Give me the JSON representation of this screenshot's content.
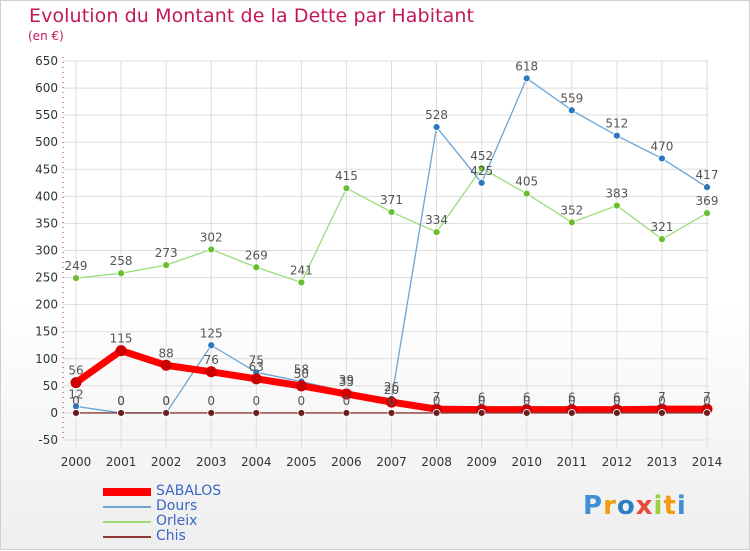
{
  "title": "Evolution du Montant de la Dette par Habitant",
  "unit": "(en €)",
  "logo": {
    "letters": [
      "P",
      "r",
      "o",
      "x",
      "i",
      "t",
      "i"
    ],
    "colors": [
      "#3f8fd6",
      "#f39c12",
      "#2c7fc2",
      "#e74c3c",
      "#9bcf3b",
      "#f39c12",
      "#3f8fd6"
    ]
  },
  "colors": {
    "axis_text": "#333333",
    "grid": "#dddddd",
    "label": "#555555"
  },
  "chart_data": {
    "type": "line",
    "title": "Evolution du Montant de la Dette par Habitant",
    "subtitle": "(en €)",
    "x": [
      "2000",
      "2001",
      "2002",
      "2003",
      "2004",
      "2005",
      "2006",
      "2007",
      "2008",
      "2009",
      "2010",
      "2011",
      "2012",
      "2013",
      "2014"
    ],
    "ylim": [
      -50,
      650
    ],
    "yticks": [
      -50,
      0,
      50,
      100,
      150,
      200,
      250,
      300,
      350,
      400,
      450,
      500,
      550,
      600,
      650
    ],
    "grid": true,
    "legend_position": "bottom-left",
    "series": [
      {
        "name": "SABALOS",
        "color": "#ff0000",
        "marker_color": "#cc0000",
        "line_width": 7,
        "values": [
          56,
          115,
          88,
          76,
          63,
          50,
          35,
          20,
          7,
          6,
          6,
          6,
          6,
          7,
          7
        ],
        "labels": [
          "56",
          "115",
          "88",
          "76",
          "63",
          "50",
          "35",
          "20",
          "7",
          "6",
          "6",
          "6",
          "6",
          "7",
          "7"
        ]
      },
      {
        "name": "Dours",
        "color": "#6aa5d6",
        "marker_color": "#2b79bd",
        "line_width": 1.3,
        "values": [
          12,
          0,
          0,
          125,
          75,
          58,
          39,
          26,
          528,
          425,
          618,
          559,
          512,
          470,
          417
        ],
        "labels": [
          "12",
          "0",
          "0",
          "125",
          "75",
          "58",
          "39",
          "26",
          "528",
          "425",
          "618",
          "559",
          "512",
          "470",
          "417"
        ]
      },
      {
        "name": "Orleix",
        "color": "#99dd77",
        "marker_color": "#6abf2f",
        "line_width": 1.3,
        "values": [
          249,
          258,
          273,
          302,
          269,
          241,
          415,
          371,
          334,
          452,
          405,
          352,
          383,
          321,
          369
        ],
        "labels": [
          "249",
          "258",
          "273",
          "302",
          "269",
          "241",
          "415",
          "371",
          "334",
          "452",
          "405",
          "352",
          "383",
          "321",
          "369"
        ]
      },
      {
        "name": "Chis",
        "color": "#8a3a3a",
        "marker_color": "#6b1f1f",
        "line_width": 1.3,
        "values": [
          0,
          0,
          0,
          0,
          0,
          0,
          0,
          0,
          0,
          0,
          0,
          0,
          0,
          0,
          0
        ],
        "labels": [
          "0",
          "0",
          "0",
          "0",
          "0",
          "0",
          "0",
          "0",
          "0",
          "0",
          "0",
          "0",
          "0",
          "0",
          "0"
        ]
      }
    ]
  }
}
